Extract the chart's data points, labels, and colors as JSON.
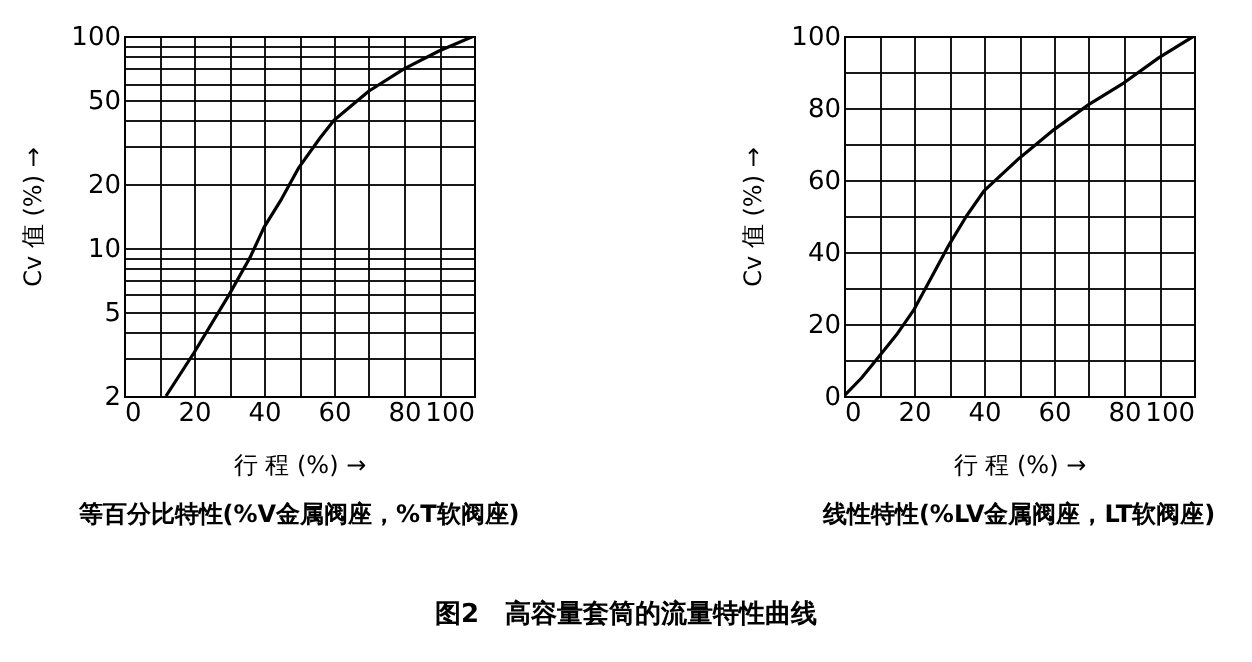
{
  "chart_data": [
    {
      "type": "line",
      "xlabel": "行 程 (%) →",
      "ylabel": "Cv 值 (%) →",
      "log": "y",
      "grid": true,
      "marker": "none",
      "line_style": "solid",
      "x": [
        12,
        20,
        30,
        36,
        40,
        45,
        50,
        56,
        60,
        70,
        80,
        90,
        100
      ],
      "series": [
        {
          "color": "#000000",
          "values": [
            2,
            3.2,
            6,
            9,
            12.5,
            17,
            24,
            33,
            40,
            55,
            70,
            85,
            100
          ]
        }
      ],
      "xlim": [
        0,
        100
      ],
      "ylim": [
        2,
        100
      ],
      "xticks": [
        0,
        {
          "value": 10,
          "label": null
        },
        20,
        {
          "value": 30,
          "label": null
        },
        40,
        {
          "value": 50,
          "label": null
        },
        60,
        {
          "value": 70,
          "label": null
        },
        80,
        {
          "value": 90,
          "label": null
        },
        100
      ],
      "yticks": [
        2,
        {
          "value": 3,
          "label": null
        },
        {
          "value": 4,
          "label": null
        },
        5,
        {
          "value": 6,
          "label": null
        },
        {
          "value": 7,
          "label": null
        },
        {
          "value": 8,
          "label": null
        },
        {
          "value": 9,
          "label": null
        },
        10,
        20,
        {
          "value": 30,
          "label": null
        },
        {
          "value": 40,
          "label": null
        },
        50,
        {
          "value": 60,
          "label": null
        },
        {
          "value": 70,
          "label": null
        },
        {
          "value": 80,
          "label": null
        },
        {
          "value": 90,
          "label": null
        },
        100
      ],
      "annotations": [
        "等百分比特性(%V金属阀座，%T软阀座)",
        "图2　高容量套筒的流量特性曲线"
      ]
    },
    {
      "type": "line",
      "xlabel": "行 程 (%) →",
      "ylabel": "Cv 值 (%) →",
      "grid": true,
      "marker": "none",
      "line_style": "solid",
      "x": [
        0,
        5,
        10,
        15,
        20,
        25,
        30,
        35,
        40,
        50,
        60,
        70,
        80,
        90,
        100
      ],
      "series": [
        {
          "color": "#000000",
          "values": [
            0,
            5,
            11,
            17,
            24,
            33,
            42,
            50,
            57,
            66,
            74,
            81,
            87,
            94,
            100
          ]
        }
      ],
      "xlim": [
        0,
        100
      ],
      "ylim": [
        0,
        100
      ],
      "xticks": [
        0,
        {
          "value": 10,
          "label": null
        },
        20,
        {
          "value": 30,
          "label": null
        },
        40,
        {
          "value": 50,
          "label": null
        },
        60,
        {
          "value": 70,
          "label": null
        },
        80,
        {
          "value": 90,
          "label": null
        },
        100
      ],
      "yticks": [
        0,
        {
          "value": 10,
          "label": null
        },
        20,
        {
          "value": 30,
          "label": null
        },
        40,
        {
          "value": 50,
          "label": null
        },
        60,
        {
          "value": 70,
          "label": null
        },
        80,
        {
          "value": 90,
          "label": null
        },
        100
      ],
      "annotations": [
        "线性特性(%LV金属阀座，LT软阀座)"
      ]
    }
  ]
}
